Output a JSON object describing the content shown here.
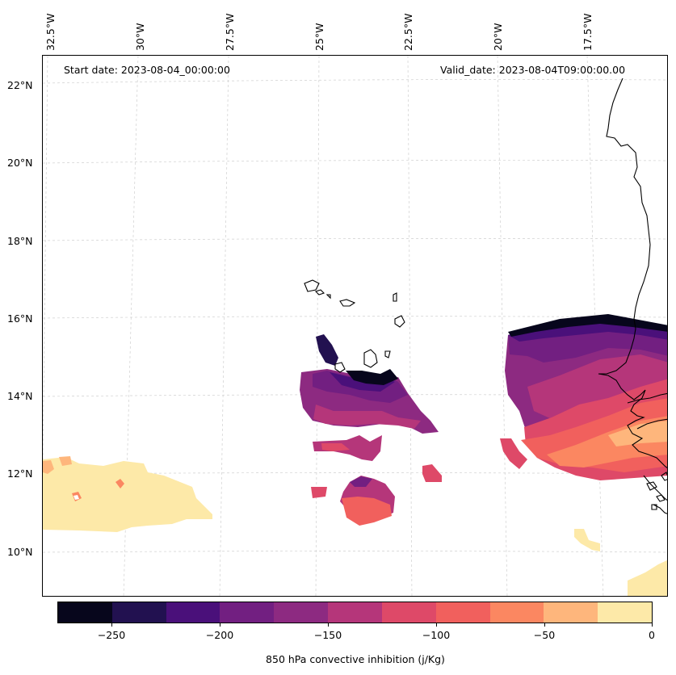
{
  "header": {
    "start_date": "Start date: 2023-08-04_00:00:00",
    "valid_date": "Valid_date: 2023-08-04T09:00:00.00"
  },
  "axes": {
    "longitude_labels": [
      "32.5°W",
      "30°W",
      "27.5°W",
      "25°W",
      "22.5°W",
      "20°W",
      "17.5°W"
    ],
    "latitude_labels": [
      "22°N",
      "20°N",
      "18°N",
      "16°N",
      "14°N",
      "12°N",
      "10°N"
    ],
    "gridlines": true
  },
  "colorbar": {
    "label": "850 hPa convective inhibition (j/Kg)",
    "tick_labels": [
      "−250",
      "−200",
      "−150",
      "−100",
      "−50",
      "0"
    ],
    "range": [
      -275,
      0
    ],
    "colors": [
      "#07061c",
      "#221150",
      "#4a107a",
      "#721f81",
      "#8d2a81",
      "#b5367a",
      "#de4968",
      "#f1605d",
      "#fb8761",
      "#feb67c",
      "#fde9a8"
    ]
  },
  "map": {
    "field": "850 hPa convective inhibition",
    "coastline_color": "#000000"
  }
}
